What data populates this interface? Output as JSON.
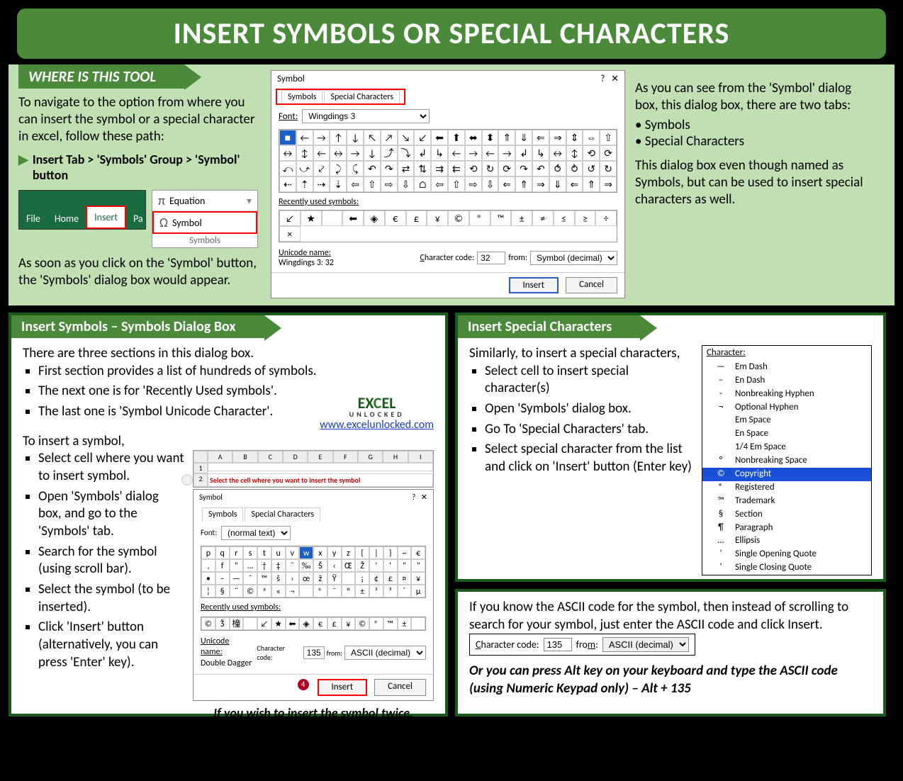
{
  "title": "INSERT SYMBOLS OR SPECIAL CHARACTERS",
  "where": {
    "heading": "WHERE IS THIS TOOL",
    "intro": "To navigate to the option from where you can insert the symbol or a special character in excel, follow these path:",
    "path": "Insert Tab > 'Symbols' Group > 'Symbol' button",
    "ribbon": {
      "file": "File",
      "home": "Home",
      "insert": "Insert",
      "p": "Pa"
    },
    "group": {
      "equation": "Equation",
      "symbol": "Symbol",
      "label": "Symbols"
    },
    "after": "As soon as you click on the 'Symbol' button, the 'Symbols' dialog box would appear."
  },
  "dialog": {
    "title": "Symbol",
    "tabs": [
      "Symbols",
      "Special Characters"
    ],
    "font_label": "Font:",
    "font_value": "Wingdings 3",
    "grid": [
      "■",
      "←",
      "→",
      "↑",
      "↓",
      "↖",
      "↗",
      "↘",
      "↙",
      "⬅",
      "⬆",
      "⬌",
      "⬍",
      "⇑",
      "⇓",
      "⇐",
      "⇒",
      "⇕",
      "⇔",
      "⇧",
      "↔",
      "↕",
      "←",
      "↔",
      "→",
      "↓",
      "⤴",
      "⤵",
      "↲",
      "↳",
      "←",
      "→",
      "←",
      "→",
      "↲",
      "↳",
      "↔",
      "↕",
      "⟲",
      "⟳",
      "⤺",
      "⤻",
      "⤦",
      "⤸",
      "⤹",
      "↶",
      "↷",
      "⇄",
      "⇅",
      "⇉",
      "⇇",
      "⟲",
      "↻",
      "⟳",
      "↷",
      "↶",
      "⥀",
      "⥁",
      "↺",
      "↻",
      "⇠",
      "⇡",
      "⇢",
      "⇣",
      "⇦",
      "⇧",
      "⇨",
      "⇩",
      "⌂",
      "⇦",
      "⇧",
      "⇨",
      "⇩",
      "⇐",
      "⇑",
      "⇒",
      "⇓",
      "⇐",
      "⇑",
      "⇒"
    ],
    "recent_label": "Recently used symbols:",
    "recent": [
      "↙",
      "★",
      " ",
      "⬅",
      "◈",
      "€",
      "£",
      "¥",
      "©",
      "®",
      "™",
      "±",
      "≠",
      "≤",
      "≥",
      "÷",
      "×"
    ],
    "uname_label": "Unicode name:",
    "uname_value": "Wingdings 3: 32",
    "code_label": "Character code:",
    "code_value": "32",
    "from_label": "from:",
    "from_value": "Symbol (decimal)",
    "insert_btn": "Insert",
    "cancel_btn": "Cancel"
  },
  "right": {
    "p1": "As you can see from the 'Symbol' dialog box, this dialog box, there are two tabs:",
    "b1": "• Symbols",
    "b2": "• Special Characters",
    "p2": "This dialog box even though named as Symbols, but can be used to insert special characters as well."
  },
  "cardA": {
    "heading": "Insert Symbols – Symbols Dialog Box",
    "p1": "There are three sections in this dialog box.",
    "l1": "First section provides a list of hundreds of symbols.",
    "l2": "The next one is for 'Recently Used symbols'.",
    "l3": "The last one is 'Symbol Unicode Character'.",
    "p2": "To insert a symbol,",
    "s1": "Select cell where you want to insert symbol.",
    "s2": "Open 'Symbols' dialog box, and go to the 'Symbols' tab.",
    "s3": "Search for the symbol (using scroll bar).",
    "s4": "Select the symbol (to be inserted).",
    "s5": "Click 'Insert' button (alternatively, you can press 'Enter' key).",
    "logo1": "EXCEL",
    "logo2": "UNLOCKED",
    "link": "www.excelunlocked.com",
    "note": "If you wish to insert the symbol twice, click on 'Insert' once again and so on."
  },
  "smalldlg": {
    "title": "Symbol",
    "font_label": "Font:",
    "font_value": "(normal text)",
    "grid": [
      "p",
      "q",
      "r",
      "s",
      "t",
      "u",
      "v",
      "w",
      "x",
      "y",
      "z",
      "{",
      "|",
      "}",
      "~",
      "€",
      ",",
      "f",
      "\"",
      "…",
      "†",
      "‡",
      "ˆ",
      "‰",
      "Š",
      "‹",
      "Œ",
      "Ž",
      "'",
      "'",
      "\"",
      "\"",
      "•",
      "–",
      "—",
      "˜",
      "™",
      "š",
      "›",
      "œ",
      "ž",
      "Ÿ",
      " ",
      "¡",
      "¢",
      "£",
      "¤",
      "¥",
      "¦",
      "§",
      "¨",
      "©",
      "ª",
      "«",
      "¬",
      "­",
      "®",
      "¯",
      "°",
      "±",
      "²",
      "³",
      "´",
      "µ"
    ],
    "sel_index": 7,
    "recent": [
      "©",
      "Ǯ",
      "橦",
      " ",
      "↙",
      "★",
      "⬅",
      "◈",
      "€",
      "£",
      "¥",
      "©",
      "®",
      "™",
      "±",
      " "
    ],
    "uname_value": "Double Dagger",
    "code_value": "135",
    "from_value": "ASCII (decimal)",
    "cell_msg": "Select the cell where you want to insert the symbol"
  },
  "cardB": {
    "heading": "Insert Special Characters",
    "p1": "Similarly, to insert a special characters,",
    "s1": "Select cell to insert special character(s)",
    "s2": "Open 'Symbols' dialog box.",
    "s3": "Go To 'Special Characters' tab.",
    "s4": "Select special character from the list and click on 'Insert' button (Enter key)",
    "list_head": "Character:",
    "list": [
      {
        "s": "—",
        "n": "Em Dash"
      },
      {
        "s": "–",
        "n": "En Dash"
      },
      {
        "s": "-",
        "n": "Nonbreaking Hyphen"
      },
      {
        "s": "¬",
        "n": "Optional Hyphen"
      },
      {
        "s": " ",
        "n": "Em Space"
      },
      {
        "s": " ",
        "n": "En Space"
      },
      {
        "s": " ",
        "n": "1/4 Em Space"
      },
      {
        "s": "°",
        "n": "Nonbreaking Space"
      },
      {
        "s": "©",
        "n": "Copyright"
      },
      {
        "s": "®",
        "n": "Registered"
      },
      {
        "s": "™",
        "n": "Trademark"
      },
      {
        "s": "§",
        "n": "Section"
      },
      {
        "s": "¶",
        "n": "Paragraph"
      },
      {
        "s": "…",
        "n": "Ellipsis"
      },
      {
        "s": "'",
        "n": "Single Opening Quote"
      },
      {
        "s": "'",
        "n": "Single Closing Quote"
      }
    ],
    "list_sel": 8
  },
  "cardC": {
    "p1": "If you know the ASCII code for the symbol, then instead of scrolling to search for your symbol, just enter the ASCII code and click Insert.",
    "code_label": "Character code:",
    "code_value": "135",
    "from_label": "from:",
    "from_value": "ASCII (decimal)",
    "p2": "Or you can press Alt key on your keyboard and type the ASCII code (using Numeric Keypad only) – Alt + 135"
  }
}
